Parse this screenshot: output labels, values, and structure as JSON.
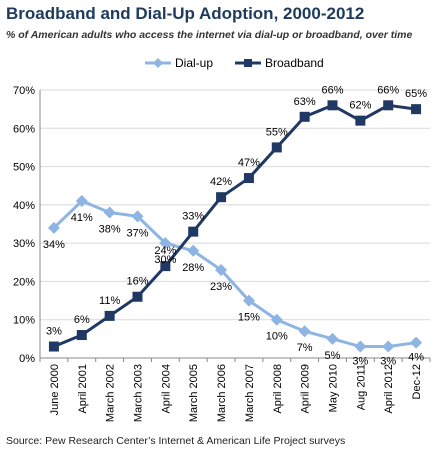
{
  "chart_data": {
    "type": "line",
    "title": "Broadband and Dial-Up Adoption, 2000-2012",
    "subtitle": "% of American adults who access the internet via dial-up or broadband, over time",
    "source": "Source: Pew Research Center’s Internet & American Life Project surveys",
    "categories": [
      "June 2000",
      "April 2001",
      "March 2002",
      "March 2003",
      "April 2004",
      "March 2005",
      "March 2006",
      "March 2007",
      "April 2008",
      "April 2009",
      "May 2010",
      "Aug 2011",
      "April 2012",
      "Dec-12"
    ],
    "ylim": [
      0,
      70
    ],
    "yticks": [
      "0%",
      "10%",
      "20%",
      "30%",
      "40%",
      "50%",
      "60%",
      "70%"
    ],
    "grid": true,
    "legend": "top-center",
    "series": [
      {
        "name": "Dial-up",
        "color": "#8db4e2",
        "marker": "diamond",
        "values": [
          34,
          41,
          38,
          37,
          30,
          28,
          23,
          15,
          10,
          7,
          5,
          3,
          3,
          4
        ],
        "labels": [
          "34%",
          "41%",
          "38%",
          "37%",
          "30%",
          "28%",
          "23%",
          "15%",
          "10%",
          "7%",
          "5%",
          "3%",
          "3%",
          "4%"
        ]
      },
      {
        "name": "Broadband",
        "color": "#1f3864",
        "marker": "square",
        "values": [
          3,
          6,
          11,
          16,
          24,
          33,
          42,
          47,
          55,
          63,
          66,
          62,
          66,
          65
        ],
        "labels": [
          "3%",
          "6%",
          "11%",
          "16%",
          "24%",
          "33%",
          "42%",
          "47%",
          "55%",
          "63%",
          "66%",
          "62%",
          "66%",
          "65%"
        ]
      }
    ]
  }
}
